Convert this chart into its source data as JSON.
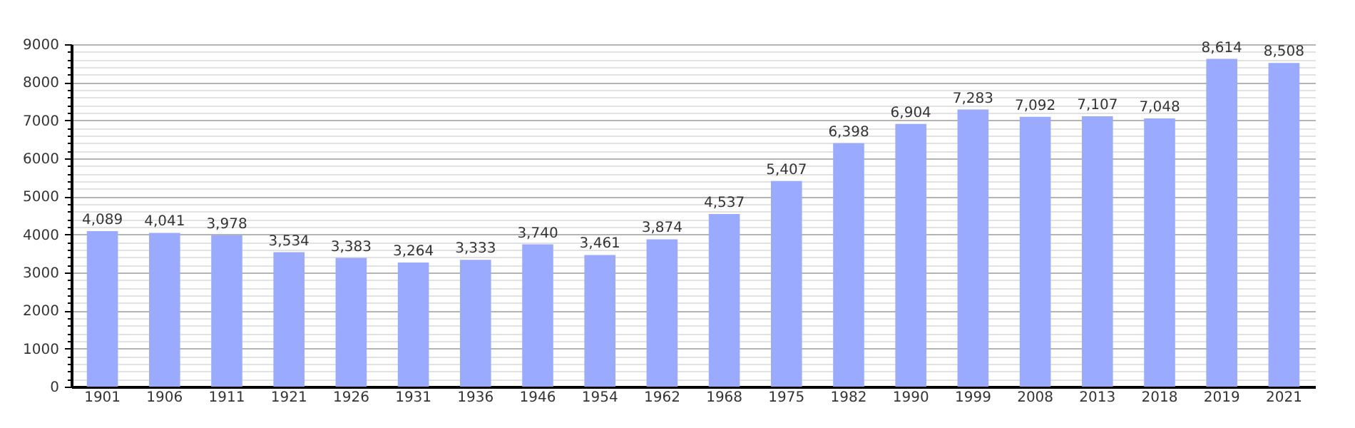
{
  "chart_data": {
    "type": "bar",
    "categories": [
      "1901",
      "1906",
      "1911",
      "1921",
      "1926",
      "1931",
      "1936",
      "1946",
      "1954",
      "1962",
      "1968",
      "1975",
      "1982",
      "1990",
      "1999",
      "2008",
      "2013",
      "2018",
      "2019",
      "2021"
    ],
    "values": [
      4089,
      4041,
      3978,
      3534,
      3383,
      3264,
      3333,
      3740,
      3461,
      3874,
      4537,
      5407,
      6398,
      6904,
      7283,
      7092,
      7107,
      7048,
      8614,
      8508
    ],
    "value_labels": [
      "4,089",
      "4,041",
      "3,978",
      "3,534",
      "3,383",
      "3,264",
      "3,333",
      "3,740",
      "3,461",
      "3,874",
      "4,537",
      "5,407",
      "6,398",
      "6,904",
      "7,283",
      "7,092",
      "7,107",
      "7,048",
      "8,614",
      "8,508"
    ],
    "color": "#99aaff",
    "ylim": [
      0,
      9000
    ],
    "yticks": [
      0,
      {
        "value": 200,
        "label": null
      },
      {
        "value": 400,
        "label": null
      },
      {
        "value": 600,
        "label": null
      },
      {
        "value": 800,
        "label": null
      },
      1000,
      {
        "value": 1200,
        "label": null
      },
      {
        "value": 1400,
        "label": null
      },
      {
        "value": 1600,
        "label": null
      },
      {
        "value": 1800,
        "label": null
      },
      2000,
      {
        "value": 2200,
        "label": null
      },
      {
        "value": 2400,
        "label": null
      },
      {
        "value": 2600,
        "label": null
      },
      {
        "value": 2800,
        "label": null
      },
      3000,
      {
        "value": 3200,
        "label": null
      },
      {
        "value": 3400,
        "label": null
      },
      {
        "value": 3600,
        "label": null
      },
      {
        "value": 3800,
        "label": null
      },
      4000,
      {
        "value": 4200,
        "label": null
      },
      {
        "value": 4400,
        "label": null
      },
      {
        "value": 4600,
        "label": null
      },
      {
        "value": 4800,
        "label": null
      },
      5000,
      {
        "value": 5200,
        "label": null
      },
      {
        "value": 5400,
        "label": null
      },
      {
        "value": 5600,
        "label": null
      },
      {
        "value": 5800,
        "label": null
      },
      6000,
      {
        "value": 6200,
        "label": null
      },
      {
        "value": 6400,
        "label": null
      },
      {
        "value": 6600,
        "label": null
      },
      {
        "value": 6800,
        "label": null
      },
      7000,
      {
        "value": 7200,
        "label": null
      },
      {
        "value": 7400,
        "label": null
      },
      {
        "value": 7600,
        "label": null
      },
      {
        "value": 7800,
        "label": null
      },
      8000,
      {
        "value": 8200,
        "label": null
      },
      {
        "value": 8400,
        "label": null
      },
      {
        "value": 8600,
        "label": null
      },
      {
        "value": 8800,
        "label": null
      },
      9000
    ],
    "grid": "y"
  }
}
